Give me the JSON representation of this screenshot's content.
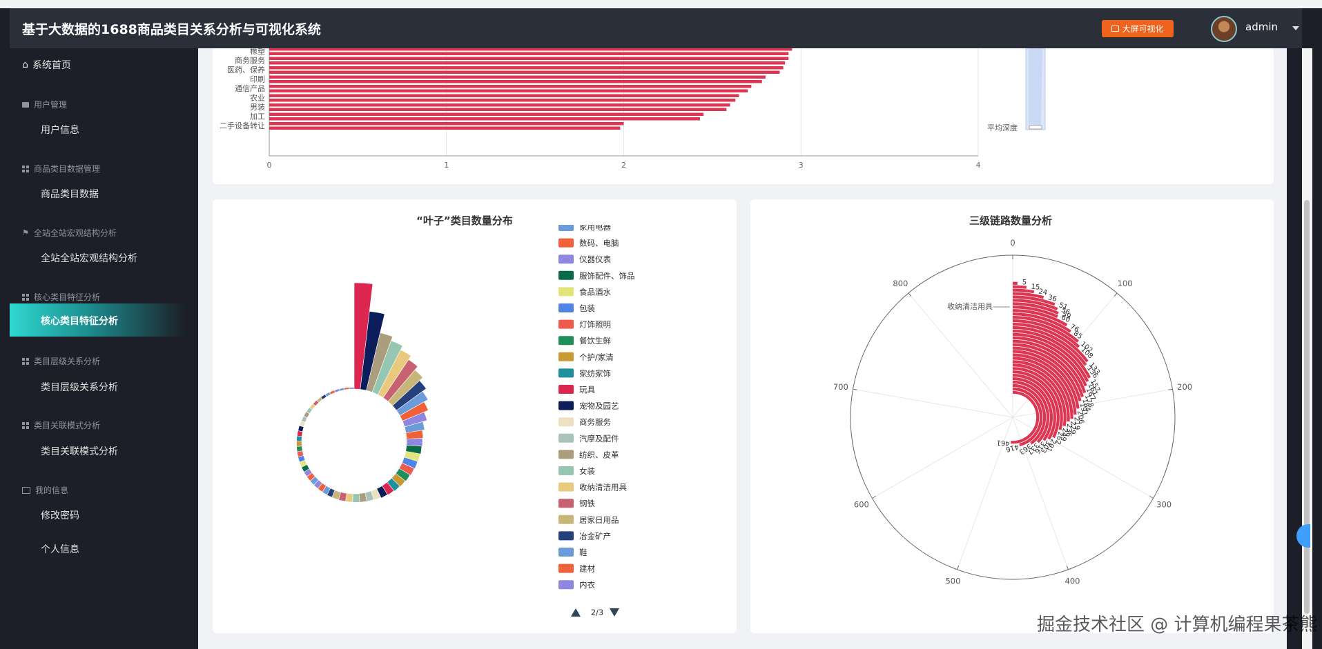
{
  "header": {
    "title": "基于大数据的1688商品类目关系分析与可视化系统",
    "big_screen_label": "大屏可视化",
    "username": "admin"
  },
  "sidebar": {
    "home": "系统首页",
    "groups": [
      {
        "label": "用户管理",
        "items": [
          "用户信息"
        ]
      },
      {
        "label": "商品类目数据管理",
        "items": [
          "商品类目数据"
        ]
      },
      {
        "label": "全站全站宏观结构分析",
        "items": [
          "全站全站宏观结构分析"
        ]
      },
      {
        "label": "核心类目特征分析",
        "items": [
          "核心类目特征分析"
        ]
      },
      {
        "label": "类目层级关系分析",
        "items": [
          "类目层级关系分析"
        ]
      },
      {
        "label": "类目关联模式分析",
        "items": [
          "类目关联模式分析"
        ]
      },
      {
        "label": "我的信息",
        "items": [
          "修改密码",
          "个人信息"
        ]
      }
    ]
  },
  "colors": {
    "bar": "#dc3652",
    "accent": "#f0631d",
    "active_start": "#2fd8cf"
  },
  "chart_data": [
    {
      "type": "bar",
      "orientation": "horizontal",
      "categories": [
        "橡塑",
        "商务服务",
        "医药、保养",
        "印刷",
        "通信产品",
        "农业",
        "男装",
        "加工",
        "二手设备转让"
      ],
      "values": [
        2.95,
        2.93,
        2.9,
        2.8,
        2.72,
        2.65,
        2.6,
        2.45,
        2.0
      ],
      "xticks": [
        "0",
        "1",
        "2",
        "3",
        "4"
      ],
      "xlim": [
        0,
        4
      ],
      "legend": "平均深度"
    },
    {
      "type": "pie",
      "title": "“叶子”类目数量分布",
      "legend_page": "2/3",
      "legend": [
        {
          "name": "家用电器",
          "color": "#6b9bd8"
        },
        {
          "name": "数码、电脑",
          "color": "#f0613a"
        },
        {
          "name": "仪器仪表",
          "color": "#8f86df"
        },
        {
          "name": "服饰配件、饰品",
          "color": "#0a6b47"
        },
        {
          "name": "食品酒水",
          "color": "#e3e57a"
        },
        {
          "name": "包装",
          "color": "#4f86e6"
        },
        {
          "name": "灯饰照明",
          "color": "#ee5a4b"
        },
        {
          "name": "餐饮生鲜",
          "color": "#1f8f5a"
        },
        {
          "name": "个护/家清",
          "color": "#c89a34"
        },
        {
          "name": "家纺家饰",
          "color": "#1e8f9c"
        },
        {
          "name": "玩具",
          "color": "#dc2650"
        },
        {
          "name": "宠物及园艺",
          "color": "#0b1d5b"
        },
        {
          "name": "商务服务",
          "color": "#ece1c3"
        },
        {
          "name": "汽摩及配件",
          "color": "#a9c3b8"
        },
        {
          "name": "纺织、皮革",
          "color": "#ad9d7f"
        },
        {
          "name": "女装",
          "color": "#95c6b2"
        },
        {
          "name": "收纳清洁用具",
          "color": "#e9c97e"
        },
        {
          "name": "钢铁",
          "color": "#c76272"
        },
        {
          "name": "居家日用品",
          "color": "#c7b57a"
        },
        {
          "name": "冶金矿产",
          "color": "#25407a"
        },
        {
          "name": "鞋",
          "color": "#6b9bd8"
        },
        {
          "name": "建材",
          "color": "#f0613a"
        },
        {
          "name": "内衣",
          "color": "#8f86df"
        }
      ]
    },
    {
      "type": "polar-bar",
      "title": "三级链路数量分析",
      "angle_ticks": [
        "0",
        "100",
        "200",
        "300",
        "400",
        "500",
        "600",
        "700",
        "800"
      ],
      "angle_max": 900,
      "highlight_label": "收纳清洁用具",
      "value_labels": [
        "5",
        "15",
        "24",
        "36",
        "51",
        "56",
        "59",
        "60",
        "76",
        "85",
        "102",
        "108",
        "133",
        "136",
        "157",
        "161",
        "167",
        "178",
        "184",
        "191",
        "206",
        "219",
        "229",
        "236",
        "249",
        "262",
        "291",
        "303",
        "316",
        "337",
        "363",
        "416",
        "461"
      ]
    }
  ],
  "watermark": "掘金技术社区 @ 计算机编程果茶熊"
}
